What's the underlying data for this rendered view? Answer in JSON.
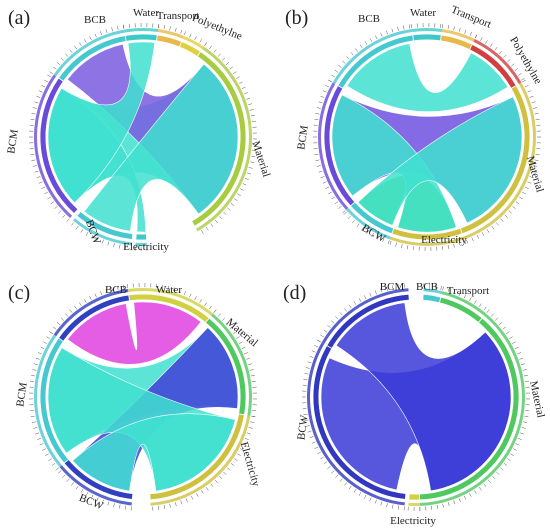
{
  "panels": [
    {
      "letter": "(a)",
      "segments": [
        {
          "label": "Water",
          "color": "#3ec9c9"
        },
        {
          "label": "Transport",
          "color": "#e8b84a"
        },
        {
          "label": "Polyethylne",
          "color": "#e0d040"
        },
        {
          "label": "Material",
          "color": "#a8cc40"
        },
        {
          "label": "Electricity",
          "color": "#3ec9c9"
        },
        {
          "label": "BCW",
          "color": "#46c8d0"
        },
        {
          "label": "BCM",
          "color": "#6a4ad8"
        },
        {
          "label": "BCB",
          "color": "#46c8d0"
        }
      ],
      "ribbons": [
        {
          "from": "BCM",
          "to": "Material",
          "color": "#40e0d0"
        },
        {
          "from": "BCB",
          "to": "Material",
          "color": "#7a5ae0"
        },
        {
          "from": "BCM",
          "to": "Electricity",
          "color": "#40e0d0"
        },
        {
          "from": "BCW",
          "to": "Material",
          "color": "#40e0d0"
        },
        {
          "from": "Water",
          "to": "BCM",
          "color": "#40e0d0"
        }
      ]
    },
    {
      "letter": "(b)",
      "segments": [
        {
          "label": "Water",
          "color": "#3ec9c9"
        },
        {
          "label": "Transport",
          "color": "#e8b84a"
        },
        {
          "label": "Polyethylne",
          "color": "#d04040"
        },
        {
          "label": "Material",
          "color": "#d0c040"
        },
        {
          "label": "Electricity",
          "color": "#d0c040"
        },
        {
          "label": "BCW",
          "color": "#46c8d0"
        },
        {
          "label": "BCM",
          "color": "#6a4ad8"
        },
        {
          "label": "BCB",
          "color": "#46c8d0"
        }
      ],
      "ribbons": [
        {
          "from": "BCM",
          "to": "Material",
          "color": "#7050e0"
        },
        {
          "from": "BCB",
          "to": "Polyethylne",
          "color": "#40e0d0"
        },
        {
          "from": "BCW",
          "to": "Electricity",
          "color": "#40d840"
        },
        {
          "from": "BCM",
          "to": "Electricity",
          "color": "#40e0d0"
        },
        {
          "from": "BCW",
          "to": "Material",
          "color": "#40e0d0"
        }
      ]
    },
    {
      "letter": "(c)",
      "segments": [
        {
          "label": "Water",
          "color": "#d0d040"
        },
        {
          "label": "Material",
          "color": "#50c860"
        },
        {
          "label": "Electricity",
          "color": "#d0c040"
        },
        {
          "label": "BCW",
          "color": "#3040c0"
        },
        {
          "label": "BCM",
          "color": "#46c8d0"
        },
        {
          "label": "BCB",
          "color": "#3040c0"
        }
      ],
      "ribbons": [
        {
          "from": "BCB",
          "to": "Water",
          "color": "#e040e0"
        },
        {
          "from": "BCM",
          "to": "Material",
          "color": "#40e0d0"
        },
        {
          "from": "BCW",
          "to": "Material",
          "color": "#4040d8"
        },
        {
          "from": "BCM",
          "to": "Electricity",
          "color": "#40e0d0"
        },
        {
          "from": "BCW",
          "to": "Electricity",
          "color": "#40e0d0"
        }
      ]
    },
    {
      "letter": "(d)",
      "segments": [
        {
          "label": "BCB",
          "color": "#46c8d0"
        },
        {
          "label": "Transport",
          "color": "#50c860"
        },
        {
          "label": "Material",
          "color": "#50c860"
        },
        {
          "label": "Electricity",
          "color": "#d0d040"
        },
        {
          "label": "BCW",
          "color": "#3038c0"
        },
        {
          "label": "BCM",
          "color": "#3038c0"
        }
      ],
      "ribbons": [
        {
          "from": "BCW",
          "to": "Material",
          "color": "#3a3ad8"
        },
        {
          "from": "BCM",
          "to": "Material",
          "color": "#3a3ad8"
        }
      ]
    }
  ]
}
